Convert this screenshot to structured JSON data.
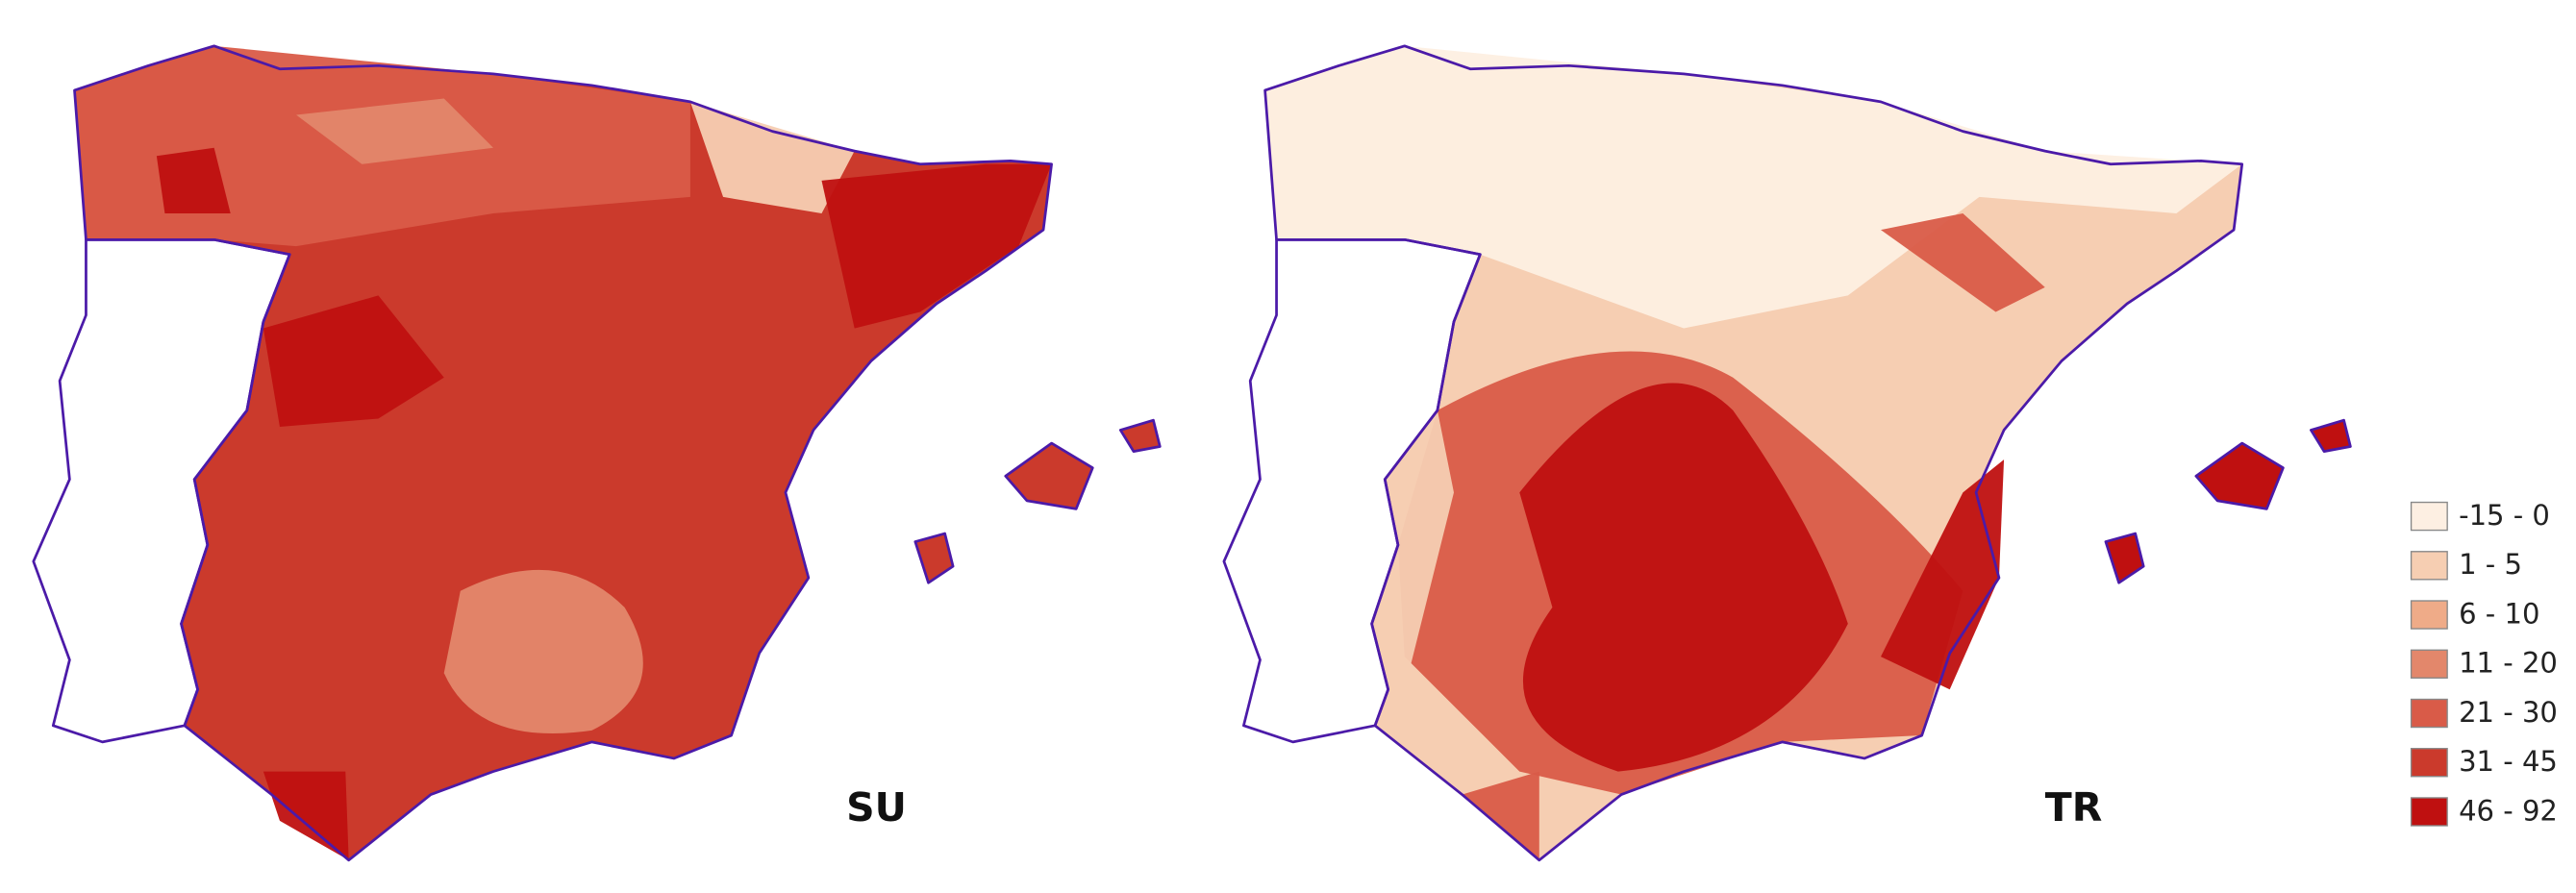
{
  "panels": [
    {
      "label": "SU"
    },
    {
      "label": "TR"
    }
  ],
  "legend": {
    "items": [
      {
        "label": "-15 - 0",
        "color": "#fdefe2"
      },
      {
        "label": "1 - 5",
        "color": "#f6ceb2"
      },
      {
        "label": "6 - 10",
        "color": "#efab88"
      },
      {
        "label": "11 - 20",
        "color": "#e3876b"
      },
      {
        "label": "21 - 30",
        "color": "#d95b48"
      },
      {
        "label": "31 - 45",
        "color": "#cb3a2c"
      },
      {
        "label": "46 - 92",
        "color": "#bf1010"
      }
    ]
  }
}
